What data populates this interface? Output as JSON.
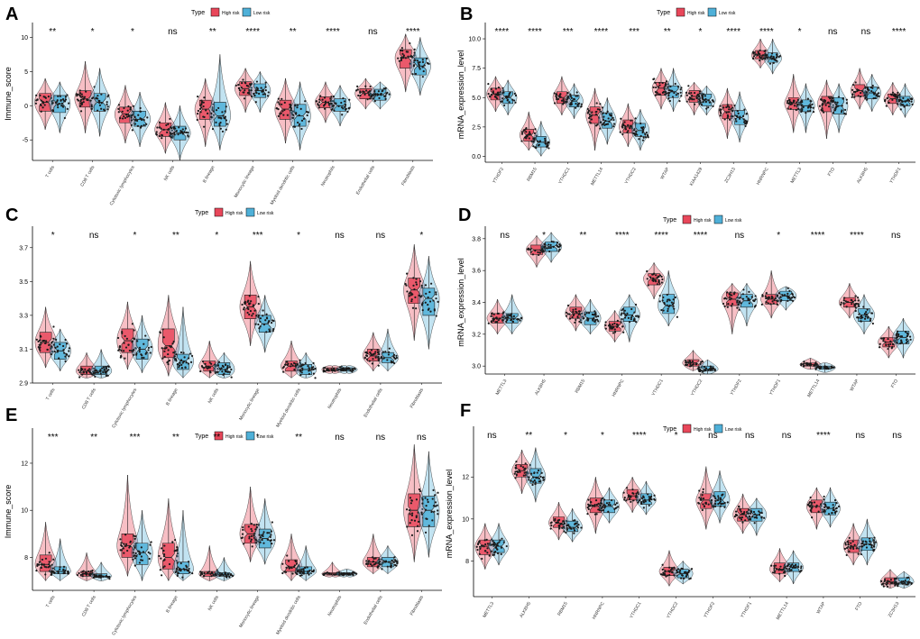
{
  "legend": {
    "title": "Type",
    "high_label": "High risk",
    "low_label": "Low risk"
  },
  "colors": {
    "high": "#e8475a",
    "low": "#4fb0d8",
    "dot": "#1a1a1a",
    "axis": "#000000"
  },
  "chart_data": [
    {
      "panel": "A",
      "type": "boxplot",
      "ylabel": "Immune_score",
      "ylim": [
        -8,
        11.5
      ],
      "yticks": [
        -5,
        0,
        5,
        10
      ],
      "categories": [
        "T cells",
        "CD8 T cells",
        "Cytotoxic lymphocytes",
        "NK cells",
        "B lineage",
        "Monocytic lineage",
        "Myeloid dendritic cells",
        "Neutrophils",
        "Endothelial cells",
        "Fibroblasts"
      ],
      "significance": [
        "**",
        "*",
        "*",
        "ns",
        "**",
        "****",
        "**",
        "****",
        "ns",
        "****"
      ],
      "series": [
        {
          "name": "High risk",
          "medians": [
            0.5,
            1.0,
            -1.2,
            -3.5,
            -0.5,
            2.5,
            -0.5,
            0.5,
            1.8,
            7.0
          ],
          "q1": [
            -0.8,
            -0.2,
            -2.5,
            -4.5,
            -2.0,
            1.5,
            -2.0,
            -0.3,
            1.0,
            5.5
          ],
          "q3": [
            1.8,
            2.2,
            -0.2,
            -2.5,
            0.8,
            3.5,
            0.8,
            1.3,
            2.5,
            8.2
          ],
          "min": [
            -3.5,
            -4.0,
            -5.5,
            -7.0,
            -6.0,
            -1.0,
            -5.5,
            -2.5,
            -0.5,
            2.0
          ],
          "max": [
            4.0,
            6.5,
            3.0,
            0.5,
            4.0,
            5.5,
            4.0,
            3.5,
            4.0,
            10.5
          ]
        },
        {
          "name": "Low risk",
          "medians": [
            0.3,
            0.5,
            -2.0,
            -4.0,
            -1.5,
            2.2,
            -1.5,
            0.0,
            1.6,
            5.8
          ],
          "q1": [
            -1.0,
            -0.8,
            -3.0,
            -5.0,
            -3.0,
            1.2,
            -3.0,
            -0.8,
            0.8,
            4.5
          ],
          "q3": [
            1.5,
            1.8,
            -0.8,
            -3.0,
            0.5,
            3.2,
            0.2,
            1.0,
            2.4,
            7.0
          ],
          "min": [
            -4.0,
            -4.5,
            -6.0,
            -8.0,
            -6.5,
            -1.0,
            -6.5,
            -3.0,
            -0.5,
            1.5
          ],
          "max": [
            3.5,
            5.5,
            2.0,
            0.0,
            7.5,
            5.0,
            3.5,
            3.0,
            3.5,
            10.0
          ]
        }
      ]
    },
    {
      "panel": "B",
      "type": "boxplot",
      "ylabel": "mRNA_expression_level",
      "ylim": [
        -0.5,
        11
      ],
      "yticks": [
        0.0,
        2.5,
        5.0,
        7.5,
        10.0
      ],
      "categories": [
        "YTHDF2",
        "RBM15",
        "YTHDC1",
        "METTL14",
        "YTHDC2",
        "WTAP",
        "KIAA1429",
        "ZC3H13",
        "HNRNPC",
        "METTL3",
        "FTO",
        "ALKBH5",
        "YTHDF1"
      ],
      "significance": [
        "****",
        "****",
        "***",
        "****",
        "***",
        "**",
        "*",
        "****",
        "****",
        "*",
        "ns",
        "ns",
        "****"
      ],
      "series": [
        {
          "name": "High risk",
          "medians": [
            5.3,
            1.8,
            5.0,
            3.5,
            2.5,
            5.8,
            5.1,
            3.8,
            8.6,
            4.5,
            4.5,
            5.6,
            4.9
          ],
          "q1": [
            4.8,
            1.3,
            4.5,
            2.8,
            2.0,
            5.2,
            4.6,
            3.2,
            8.3,
            4.0,
            3.8,
            5.1,
            4.5
          ],
          "q3": [
            5.8,
            2.3,
            5.5,
            4.2,
            3.1,
            6.3,
            5.6,
            4.4,
            9.0,
            5.0,
            5.1,
            6.1,
            5.3
          ],
          "min": [
            3.8,
            0.5,
            3.5,
            0.5,
            0.8,
            4.0,
            3.5,
            1.5,
            7.5,
            2.0,
            1.5,
            4.0,
            3.5
          ],
          "max": [
            6.8,
            3.8,
            6.8,
            5.8,
            4.5,
            7.5,
            6.3,
            5.8,
            10.0,
            7.0,
            6.5,
            7.5,
            6.3
          ]
        },
        {
          "name": "Low risk",
          "medians": [
            5.0,
            1.2,
            4.7,
            3.0,
            2.2,
            5.5,
            4.8,
            3.3,
            8.3,
            4.3,
            4.3,
            5.4,
            4.7
          ],
          "q1": [
            4.5,
            0.8,
            4.2,
            2.4,
            1.7,
            5.0,
            4.3,
            2.7,
            8.0,
            3.8,
            3.6,
            4.9,
            4.3
          ],
          "q3": [
            5.5,
            1.7,
            5.2,
            3.7,
            2.8,
            6.0,
            5.3,
            3.9,
            8.8,
            4.8,
            5.0,
            5.9,
            5.1
          ],
          "min": [
            3.5,
            0.0,
            3.2,
            1.0,
            0.5,
            3.8,
            3.5,
            1.2,
            7.0,
            2.0,
            2.0,
            3.8,
            3.3
          ],
          "max": [
            6.5,
            3.0,
            6.2,
            5.0,
            4.0,
            7.5,
            6.0,
            5.5,
            10.0,
            6.2,
            6.2,
            7.0,
            6.2
          ]
        }
      ]
    },
    {
      "panel": "C",
      "type": "boxplot",
      "ylabel": "",
      "ylim": [
        2.9,
        3.8
      ],
      "yticks": [
        2.9,
        3.1,
        3.3,
        3.5,
        3.7
      ],
      "categories": [
        "T cells",
        "CD8 T cells",
        "Cytotoxic lymphocytes",
        "B lineage",
        "NK cells",
        "Monocytic lineage",
        "Myeloid dendritic cells",
        "Neutrophils",
        "Endothelial cells",
        "Fibroblasts"
      ],
      "significance": [
        "*",
        "ns",
        "*",
        "**",
        "*",
        "***",
        "*",
        "ns",
        "ns",
        "*"
      ],
      "series": [
        {
          "name": "High risk",
          "medians": [
            3.14,
            2.97,
            3.15,
            3.12,
            3.0,
            3.35,
            3.0,
            2.98,
            3.06,
            3.45
          ],
          "q1": [
            3.08,
            2.95,
            3.08,
            3.05,
            2.97,
            3.28,
            2.97,
            2.97,
            3.03,
            3.37
          ],
          "q3": [
            3.2,
            3.0,
            3.22,
            3.22,
            3.03,
            3.42,
            3.03,
            2.99,
            3.1,
            3.52
          ],
          "min": [
            2.99,
            2.93,
            2.98,
            2.94,
            2.93,
            3.12,
            2.93,
            2.96,
            2.97,
            3.15
          ],
          "max": [
            3.35,
            3.08,
            3.38,
            3.42,
            3.15,
            3.62,
            3.15,
            3.0,
            3.2,
            3.72
          ]
        },
        {
          "name": "Low risk",
          "medians": [
            3.09,
            2.97,
            3.1,
            3.03,
            2.98,
            3.25,
            2.98,
            2.98,
            3.05,
            3.4
          ],
          "q1": [
            3.04,
            2.95,
            3.04,
            2.98,
            2.95,
            3.2,
            2.95,
            2.97,
            3.02,
            3.3
          ],
          "q3": [
            3.14,
            3.0,
            3.16,
            3.07,
            3.02,
            3.3,
            3.01,
            2.99,
            3.08,
            3.46
          ],
          "min": [
            2.97,
            2.93,
            2.96,
            2.93,
            2.93,
            3.08,
            2.93,
            2.96,
            2.97,
            3.1
          ],
          "max": [
            3.22,
            3.1,
            3.3,
            3.35,
            3.08,
            3.42,
            3.08,
            3.0,
            3.22,
            3.65
          ]
        }
      ]
    },
    {
      "panel": "D",
      "type": "boxplot",
      "ylabel": "mRNA_expression_level",
      "ylim": [
        2.95,
        3.85
      ],
      "yticks": [
        3.0,
        3.2,
        3.4,
        3.6,
        3.8
      ],
      "categories": [
        "METTL3",
        "ALKBH5",
        "RBM15",
        "HNRNPC",
        "YTHDC1",
        "YTHDC2",
        "YTHDF2",
        "YTHDF1",
        "METTL14",
        "WTAP",
        "FTO"
      ],
      "significance": [
        "ns",
        "*",
        "**",
        "****",
        "****",
        "****",
        "ns",
        "*",
        "****",
        "****",
        "ns"
      ],
      "series": [
        {
          "name": "High risk",
          "medians": [
            3.3,
            3.73,
            3.33,
            3.25,
            3.55,
            3.02,
            3.42,
            3.42,
            3.01,
            3.4,
            3.15
          ],
          "q1": [
            3.27,
            3.7,
            3.3,
            3.22,
            3.51,
            3.0,
            3.38,
            3.39,
            3.0,
            3.37,
            3.12
          ],
          "q3": [
            3.33,
            3.76,
            3.37,
            3.28,
            3.58,
            3.04,
            3.46,
            3.45,
            3.02,
            3.43,
            3.18
          ],
          "min": [
            3.2,
            3.62,
            3.22,
            3.15,
            3.42,
            2.97,
            3.2,
            3.3,
            2.98,
            3.3,
            3.05
          ],
          "max": [
            3.42,
            3.82,
            3.45,
            3.35,
            3.65,
            3.1,
            3.52,
            3.6,
            3.05,
            3.52,
            3.25
          ]
        },
        {
          "name": "Low risk",
          "medians": [
            3.3,
            3.75,
            3.3,
            3.32,
            3.38,
            2.98,
            3.41,
            3.44,
            2.99,
            3.32,
            3.18
          ],
          "q1": [
            3.27,
            3.72,
            3.26,
            3.28,
            3.33,
            2.97,
            3.37,
            3.41,
            2.98,
            3.28,
            3.14
          ],
          "q3": [
            3.33,
            3.78,
            3.34,
            3.37,
            3.45,
            3.0,
            3.45,
            3.47,
            3.0,
            3.36,
            3.22
          ],
          "min": [
            3.2,
            3.65,
            3.2,
            3.15,
            3.25,
            2.95,
            3.25,
            3.35,
            2.96,
            3.2,
            3.05
          ],
          "max": [
            3.45,
            3.84,
            3.42,
            3.45,
            3.6,
            3.04,
            3.52,
            3.5,
            3.02,
            3.45,
            3.3
          ]
        }
      ]
    },
    {
      "panel": "E",
      "type": "boxplot",
      "ylabel": "Immune_score",
      "ylim": [
        6.6,
        13.3
      ],
      "yticks": [
        8,
        10,
        12
      ],
      "categories": [
        "T cells",
        "CD8 T cells",
        "Cytotoxic lymphocytes",
        "B lineage",
        "NK cells",
        "Monocytic lineage",
        "Myeloid dendritic cells",
        "Neutrophils",
        "Endothelial cells",
        "Fibroblasts"
      ],
      "significance": [
        "***",
        "**",
        "***",
        "**",
        "**",
        "*",
        "**",
        "ns",
        "ns",
        "ns"
      ],
      "series": [
        {
          "name": "High risk",
          "medians": [
            7.7,
            7.3,
            8.5,
            8.0,
            7.3,
            9.0,
            7.6,
            7.3,
            7.8,
            10.0
          ],
          "q1": [
            7.4,
            7.2,
            8.0,
            7.5,
            7.2,
            8.6,
            7.4,
            7.25,
            7.6,
            9.3
          ],
          "q3": [
            8.1,
            7.4,
            9.0,
            8.6,
            7.4,
            9.4,
            7.9,
            7.35,
            8.0,
            10.7
          ],
          "min": [
            7.0,
            7.0,
            7.2,
            7.0,
            7.0,
            7.8,
            7.0,
            7.2,
            7.3,
            7.8
          ],
          "max": [
            9.5,
            8.2,
            11.5,
            10.5,
            8.5,
            11.0,
            9.0,
            7.8,
            9.0,
            12.8
          ]
        },
        {
          "name": "Low risk",
          "medians": [
            7.4,
            7.2,
            8.2,
            7.5,
            7.25,
            8.8,
            7.4,
            7.3,
            7.8,
            10.0
          ],
          "q1": [
            7.3,
            7.15,
            7.7,
            7.3,
            7.2,
            8.4,
            7.3,
            7.25,
            7.6,
            9.3
          ],
          "q3": [
            7.6,
            7.3,
            8.6,
            7.8,
            7.35,
            9.2,
            7.6,
            7.35,
            8.0,
            10.6
          ],
          "min": [
            7.0,
            7.0,
            7.0,
            7.0,
            7.0,
            7.7,
            7.0,
            7.2,
            7.3,
            8.0
          ],
          "max": [
            8.8,
            7.8,
            10.0,
            10.0,
            8.0,
            10.5,
            8.5,
            7.5,
            8.5,
            12.5
          ]
        }
      ]
    },
    {
      "panel": "F",
      "type": "boxplot",
      "ylabel": "mRNA_expression_level",
      "ylim": [
        6.3,
        14.2
      ],
      "yticks": [
        8,
        10,
        12
      ],
      "categories": [
        "METTL3",
        "ALKBH5",
        "RBM15",
        "HNRNPC",
        "YTHDC1",
        "YTHDC2",
        "YTHDF2",
        "YTHDF1",
        "METTL14",
        "WTAP",
        "FTO",
        "ZC3H13"
      ],
      "significance": [
        "ns",
        "**",
        "*",
        "*",
        "****",
        "*",
        "ns",
        "ns",
        "ns",
        "****",
        "ns",
        "ns"
      ],
      "series": [
        {
          "name": "High risk",
          "medians": [
            8.7,
            12.3,
            9.8,
            10.6,
            11.1,
            7.5,
            10.9,
            10.2,
            7.6,
            10.6,
            8.7,
            7.0
          ],
          "q1": [
            8.3,
            12.0,
            9.6,
            10.3,
            10.9,
            7.3,
            10.5,
            9.9,
            7.4,
            10.3,
            8.4,
            6.9
          ],
          "q3": [
            9.0,
            12.6,
            10.1,
            11.0,
            11.4,
            7.7,
            11.2,
            10.5,
            7.9,
            10.9,
            9.0,
            7.2
          ],
          "min": [
            7.6,
            11.2,
            9.0,
            9.3,
            10.3,
            6.8,
            9.5,
            9.3,
            7.0,
            9.5,
            7.8,
            6.7
          ],
          "max": [
            9.8,
            13.3,
            10.8,
            12.0,
            12.0,
            8.5,
            12.5,
            11.2,
            8.6,
            11.5,
            9.8,
            7.6
          ]
        },
        {
          "name": "Low risk",
          "medians": [
            8.7,
            12.0,
            9.6,
            10.6,
            10.9,
            7.4,
            10.9,
            10.2,
            7.7,
            10.5,
            8.8,
            7.0
          ],
          "q1": [
            8.4,
            11.7,
            9.4,
            10.3,
            10.7,
            7.2,
            10.6,
            9.9,
            7.5,
            10.2,
            8.5,
            6.9
          ],
          "q3": [
            9.0,
            12.4,
            9.9,
            10.9,
            11.2,
            7.6,
            11.3,
            10.5,
            7.9,
            10.8,
            9.1,
            7.2
          ],
          "min": [
            7.8,
            10.8,
            8.9,
            9.8,
            10.2,
            6.9,
            9.8,
            9.2,
            6.9,
            9.6,
            7.8,
            6.7
          ],
          "max": [
            9.8,
            13.4,
            10.5,
            11.5,
            11.8,
            8.0,
            12.3,
            11.0,
            8.5,
            11.5,
            10.0,
            7.5
          ]
        }
      ]
    }
  ]
}
